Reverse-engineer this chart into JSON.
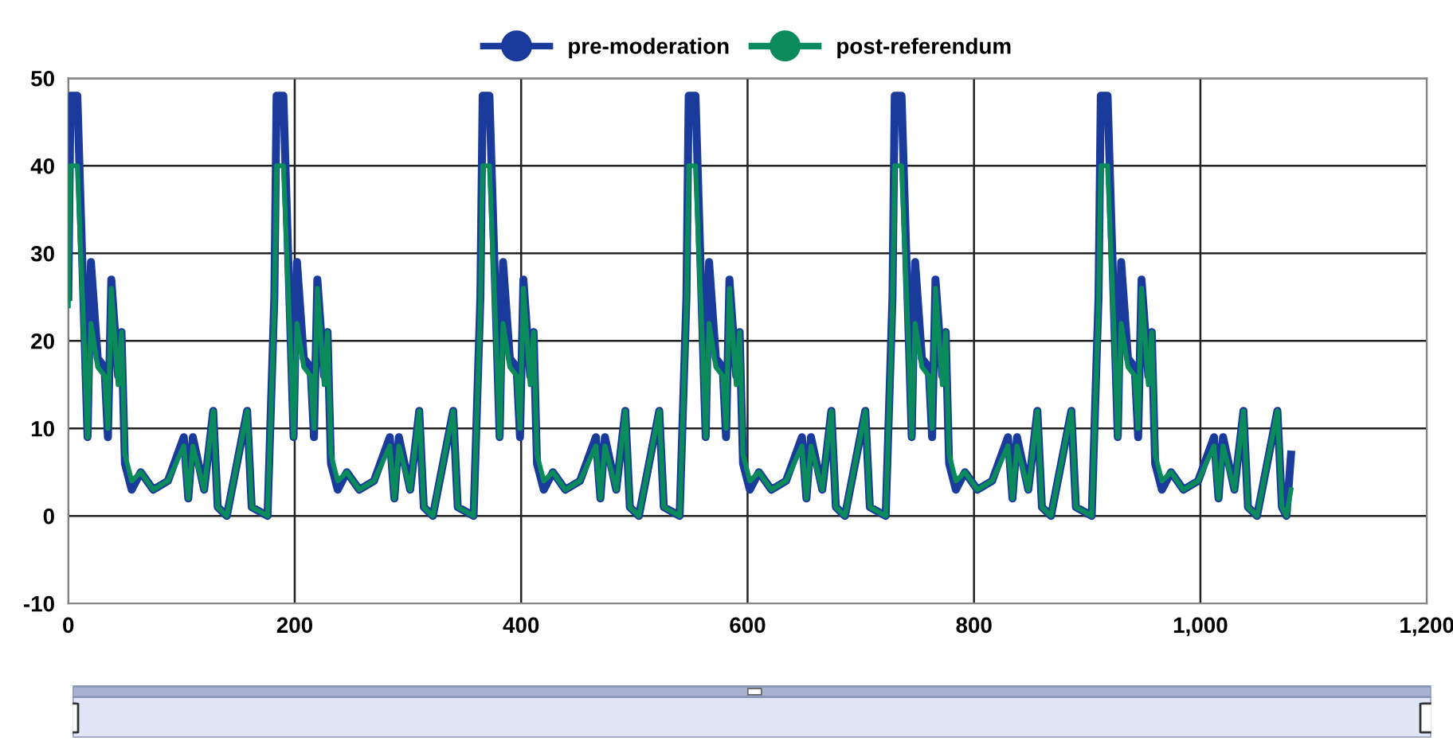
{
  "chart_data": {
    "type": "line",
    "legend": "top",
    "grid": true,
    "marker": "none",
    "line_style": "solid",
    "x": [
      0,
      2,
      8,
      14,
      17,
      20,
      26,
      32,
      35,
      38,
      44,
      47,
      50,
      56,
      64,
      75,
      88,
      102,
      106,
      110,
      120,
      128,
      132,
      140,
      158,
      162,
      176,
      182,
      184,
      190,
      196,
      199,
      202,
      208,
      214,
      217,
      220,
      226,
      229,
      232,
      238,
      246,
      257,
      270,
      284,
      288,
      292,
      302,
      310,
      314,
      322,
      340,
      344,
      358,
      364,
      366,
      372,
      378,
      381,
      384,
      390,
      396,
      399,
      402,
      408,
      411,
      414,
      420,
      428,
      439,
      452,
      466,
      470,
      474,
      484,
      492,
      496,
      504,
      522,
      526,
      540,
      546,
      548,
      554,
      560,
      563,
      566,
      572,
      578,
      581,
      584,
      590,
      593,
      596,
      602,
      610,
      621,
      634,
      648,
      652,
      656,
      666,
      674,
      678,
      686,
      704,
      708,
      722,
      728,
      730,
      736,
      742,
      745,
      748,
      754,
      760,
      763,
      766,
      772,
      775,
      778,
      784,
      792,
      803,
      816,
      830,
      834,
      838,
      848,
      856,
      860,
      868,
      886,
      890,
      904,
      910,
      912,
      918,
      924,
      927,
      930,
      936,
      942,
      945,
      948,
      954,
      957,
      960,
      966,
      974,
      985,
      998,
      1012,
      1016,
      1020,
      1030,
      1038,
      1042,
      1050,
      1068,
      1072,
      1076,
      1080
    ],
    "series": [
      {
        "name": "pre-moderation",
        "color": "#1a3a9c",
        "values": [
          25,
          48,
          48,
          22,
          9,
          29,
          18,
          17,
          9,
          27,
          16,
          21,
          6,
          3,
          5,
          3,
          4,
          9,
          2,
          9,
          3,
          12,
          1,
          0,
          12,
          1,
          0,
          25,
          48,
          48,
          22,
          9,
          29,
          18,
          17,
          9,
          27,
          16,
          21,
          6,
          3,
          5,
          3,
          4,
          9,
          2,
          9,
          3,
          12,
          1,
          0,
          12,
          1,
          0,
          25,
          48,
          48,
          22,
          9,
          29,
          18,
          17,
          9,
          27,
          16,
          21,
          6,
          3,
          5,
          3,
          4,
          9,
          2,
          9,
          3,
          12,
          1,
          0,
          12,
          1,
          0,
          25,
          48,
          48,
          22,
          9,
          29,
          18,
          17,
          9,
          27,
          16,
          21,
          6,
          3,
          5,
          3,
          4,
          9,
          2,
          9,
          3,
          12,
          1,
          0,
          12,
          1,
          0,
          25,
          48,
          48,
          22,
          9,
          29,
          18,
          17,
          9,
          27,
          16,
          21,
          6,
          3,
          5,
          3,
          4,
          9,
          2,
          9,
          3,
          12,
          1,
          0,
          12,
          1,
          0,
          25,
          48,
          48,
          22,
          9,
          29,
          18,
          17,
          9,
          27,
          16,
          21,
          6,
          3,
          5,
          3,
          4,
          9,
          2,
          9,
          3,
          12,
          1,
          0,
          12,
          1,
          0,
          7
        ]
      },
      {
        "name": "post-referendum",
        "color": "#0b8a5c",
        "values": [
          24,
          40,
          40,
          20,
          9,
          22,
          17,
          16,
          10,
          26,
          15,
          21,
          7,
          4,
          5,
          3,
          4,
          8,
          2,
          8,
          3,
          12,
          1,
          0,
          12,
          1,
          0,
          24,
          40,
          40,
          20,
          9,
          22,
          17,
          16,
          10,
          26,
          15,
          21,
          7,
          4,
          5,
          3,
          4,
          8,
          2,
          8,
          3,
          12,
          1,
          0,
          12,
          1,
          0,
          24,
          40,
          40,
          20,
          9,
          22,
          17,
          16,
          10,
          26,
          15,
          21,
          7,
          4,
          5,
          3,
          4,
          8,
          2,
          8,
          3,
          12,
          1,
          0,
          12,
          1,
          0,
          24,
          40,
          40,
          20,
          9,
          22,
          17,
          16,
          10,
          26,
          15,
          21,
          7,
          4,
          5,
          3,
          4,
          8,
          2,
          8,
          3,
          12,
          1,
          0,
          12,
          1,
          0,
          24,
          40,
          40,
          20,
          9,
          22,
          17,
          16,
          10,
          26,
          15,
          21,
          7,
          4,
          5,
          3,
          4,
          8,
          2,
          8,
          3,
          12,
          1,
          0,
          12,
          1,
          0,
          24,
          40,
          40,
          20,
          9,
          22,
          17,
          16,
          10,
          26,
          15,
          21,
          7,
          4,
          5,
          3,
          4,
          8,
          2,
          8,
          3,
          12,
          1,
          0,
          12,
          1,
          0,
          3
        ]
      }
    ],
    "xlim": [
      0,
      1200
    ],
    "xticks": [
      0,
      200,
      400,
      600,
      800,
      {
        "value": 1000,
        "label": "1,000"
      },
      {
        "value": 1200,
        "label": "1,200"
      }
    ],
    "ylim": [
      -10,
      50
    ],
    "yticks": [
      -10,
      0,
      10,
      20,
      30,
      40,
      50
    ]
  }
}
